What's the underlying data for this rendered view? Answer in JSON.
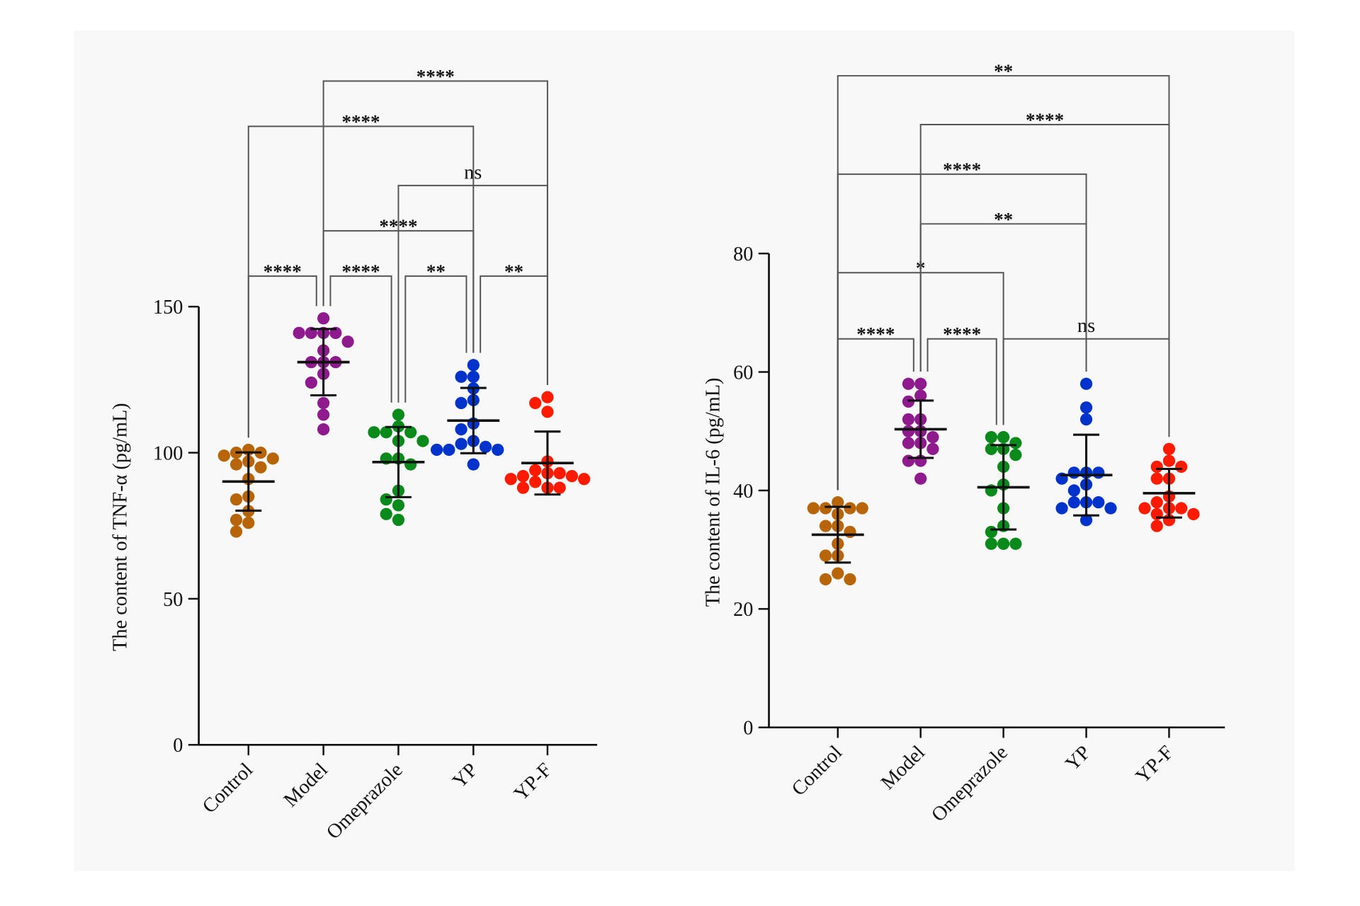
{
  "chart_data": [
    {
      "type": "scatter",
      "subtype": "dot-plot-mean-sd",
      "ylabel": "The content of TNF-α (pg/mL)",
      "xlabel": "",
      "ylim": [
        0,
        150
      ],
      "yticks": [
        0,
        50,
        100,
        150
      ],
      "categories": [
        "Control",
        "Model",
        "Omeprazole",
        "YP",
        "YP-F"
      ],
      "colors": [
        "#b8650a",
        "#8e1a8e",
        "#0a8a1a",
        "#0033cc",
        "#ff1a00"
      ],
      "series": [
        {
          "values": [
            101,
            100,
            100,
            99,
            98,
            97,
            96,
            95,
            91,
            85,
            84,
            80,
            77,
            76,
            73
          ]
        },
        {
          "values": [
            146,
            141,
            141,
            141,
            141,
            138,
            135,
            131,
            131,
            131,
            127,
            124,
            117,
            113,
            108
          ]
        },
        {
          "values": [
            113,
            109,
            107,
            107,
            107,
            104,
            104,
            98,
            98,
            96,
            87,
            84,
            82,
            79,
            77
          ]
        },
        {
          "values": [
            130,
            126,
            126,
            122,
            118,
            117,
            110,
            108,
            104,
            103,
            102,
            101,
            101,
            101,
            96
          ]
        },
        {
          "values": [
            119,
            117,
            114,
            97,
            94,
            93,
            93,
            92,
            92,
            91,
            91,
            90,
            88,
            88,
            88
          ]
        }
      ],
      "comparisons": [
        {
          "groups": [
            "Control",
            "Model"
          ],
          "label": "****"
        },
        {
          "groups": [
            "Model",
            "Omeprazole"
          ],
          "label": "****"
        },
        {
          "groups": [
            "Omeprazole",
            "YP"
          ],
          "label": "**"
        },
        {
          "groups": [
            "YP",
            "YP-F"
          ],
          "label": "**"
        },
        {
          "groups": [
            "Model",
            "YP"
          ],
          "label": "****"
        },
        {
          "groups": [
            "Omeprazole",
            "YP-F"
          ],
          "label": "ns"
        },
        {
          "groups": [
            "Control",
            "YP"
          ],
          "label": "****"
        },
        {
          "groups": [
            "Model",
            "YP-F"
          ],
          "label": "****"
        }
      ]
    },
    {
      "type": "scatter",
      "subtype": "dot-plot-mean-sd",
      "ylabel": "The content of IL-6 (pg/mL)",
      "xlabel": "",
      "ylim": [
        0,
        80
      ],
      "yticks": [
        0,
        20,
        40,
        60,
        80
      ],
      "categories": [
        "Control",
        "Model",
        "Omeprazole",
        "YP",
        "YP-F"
      ],
      "colors": [
        "#b8650a",
        "#8e1a8e",
        "#0a8a1a",
        "#0033cc",
        "#ff1a00"
      ],
      "series": [
        {
          "values": [
            38,
            37,
            37,
            37,
            37,
            36,
            34,
            34,
            33,
            31,
            29,
            29,
            26,
            25,
            25
          ]
        },
        {
          "values": [
            58,
            58,
            56,
            55,
            52,
            52,
            50,
            50,
            49,
            48,
            48,
            47,
            45,
            45,
            42
          ]
        },
        {
          "values": [
            49,
            49,
            48,
            47,
            47,
            46,
            44,
            41,
            40,
            37,
            34,
            33,
            31,
            31,
            31
          ]
        },
        {
          "values": [
            58,
            54,
            52,
            43,
            43,
            43,
            42,
            41,
            40,
            38,
            38,
            38,
            37,
            37,
            35
          ]
        },
        {
          "values": [
            47,
            45,
            44,
            44,
            42,
            42,
            39,
            38,
            37,
            37,
            37,
            36,
            36,
            35,
            34
          ]
        }
      ],
      "comparisons": [
        {
          "groups": [
            "Control",
            "Model"
          ],
          "label": "****"
        },
        {
          "groups": [
            "Model",
            "Omeprazole"
          ],
          "label": "****"
        },
        {
          "groups": [
            "Omeprazole",
            "YP-F"
          ],
          "label": "ns"
        },
        {
          "groups": [
            "Control",
            "Omeprazole"
          ],
          "label": "*"
        },
        {
          "groups": [
            "Model",
            "YP"
          ],
          "label": "**"
        },
        {
          "groups": [
            "Control",
            "YP"
          ],
          "label": "****"
        },
        {
          "groups": [
            "Model",
            "YP-F"
          ],
          "label": "****"
        },
        {
          "groups": [
            "Control",
            "YP-F"
          ],
          "label": "**"
        }
      ]
    }
  ]
}
